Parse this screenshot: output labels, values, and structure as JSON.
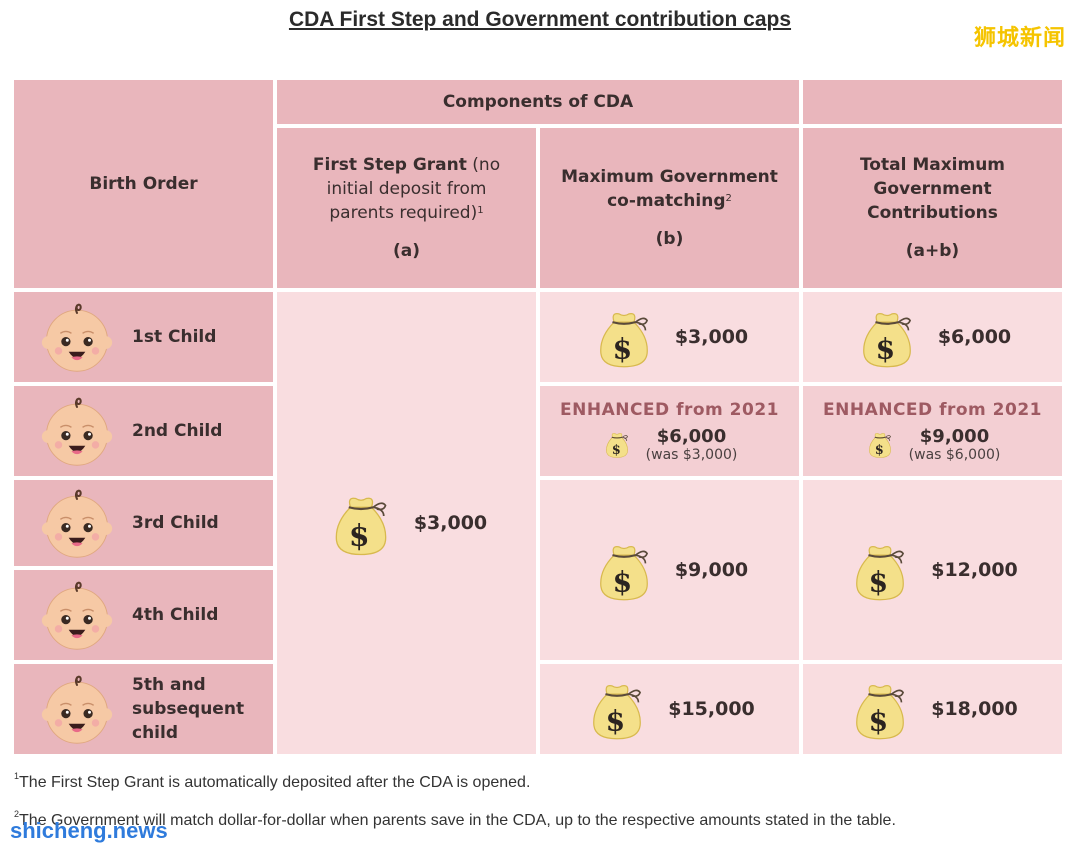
{
  "title": "CDA First Step and Government contribution caps",
  "watermarks": {
    "top_right": "狮城新闻",
    "bottom_left": "shicheng.news"
  },
  "header": {
    "birth_order": "Birth Order",
    "components": "Components of CDA",
    "col_a_bold": "First Step Grant",
    "col_a_rest": " (no initial deposit from parents required)",
    "col_a_sup": "1",
    "col_a_tag": "(a)",
    "col_b": "Maximum Government co-matching",
    "col_b_sup": "2",
    "col_b_tag": "(b)",
    "col_c": "Total Maximum Government Contributions",
    "col_c_tag": "(a+b)"
  },
  "rows": [
    {
      "label": "1st Child",
      "b": "$3,000",
      "total": "$6,000"
    },
    {
      "label": "2nd Child",
      "enhanced": "ENHANCED from 2021",
      "b": "$6,000",
      "b_was": "(was $3,000)",
      "total": "$9,000",
      "total_was": "(was $6,000)"
    },
    {
      "label": "3rd Child"
    },
    {
      "label": "4th Child"
    },
    {
      "label": "5th and subsequent child",
      "b": "$15,000",
      "total": "$18,000"
    }
  ],
  "first_step_grant": "$3,000",
  "rows_3_4": {
    "b": "$9,000",
    "total": "$12,000"
  },
  "footnotes": {
    "n1_sup": "1",
    "n1": "The First Step Grant is automatically deposited after the CDA is opened.",
    "n2_sup": "2",
    "n2": "The Government will match dollar-for-dollar when parents save in the CDA, up to the respective amounts stated in the table."
  },
  "colors": {
    "header": "#e9b6bc",
    "body": "#f9dde0",
    "accent": "#9e5a62",
    "bag": "#f4e08a"
  },
  "icons": {
    "baby": "baby-face-icon",
    "bag": "money-bag-icon"
  }
}
